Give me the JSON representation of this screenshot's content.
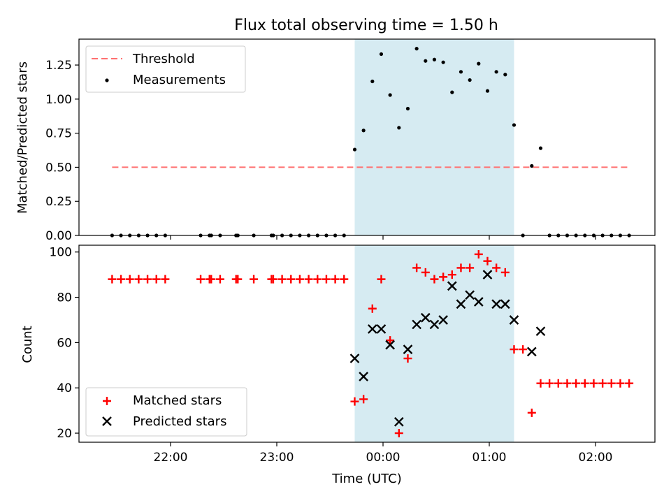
{
  "chart_data": {
    "title": "Flux total observing time = 1.50 h",
    "xlabel": "Time (UTC)",
    "x_ticks": [
      "22:00",
      "23:00",
      "00:00",
      "01:00",
      "02:00"
    ],
    "shade": {
      "start": "23:44",
      "end": "01:14",
      "color": "#add8e6"
    },
    "panels": [
      {
        "type": "scatter",
        "ylabel": "Matched/Predicted stars",
        "ylim": [
          0,
          1.44
        ],
        "yticks": [
          "0.00",
          "0.25",
          "0.50",
          "0.75",
          "1.00",
          "1.25"
        ],
        "legend_position": "top-left",
        "threshold": {
          "name": "Threshold",
          "value": 0.5,
          "x_start": "21:27",
          "x_end": "02:19",
          "color": "#ff7070"
        },
        "series": [
          {
            "name": "Measurements",
            "color": "#000000",
            "points": [
              [
                "21:27",
                0
              ],
              [
                "21:32",
                0
              ],
              [
                "21:37",
                0
              ],
              [
                "21:42",
                0
              ],
              [
                "21:47",
                0
              ],
              [
                "21:52",
                0
              ],
              [
                "21:57",
                0
              ],
              [
                "22:17",
                0
              ],
              [
                "22:22",
                0
              ],
              [
                "22:23",
                0
              ],
              [
                "22:28",
                0
              ],
              [
                "22:37",
                0
              ],
              [
                "22:38",
                0
              ],
              [
                "22:47",
                0
              ],
              [
                "22:57",
                0
              ],
              [
                "22:58",
                0
              ],
              [
                "23:03",
                0
              ],
              [
                "23:08",
                0
              ],
              [
                "23:13",
                0
              ],
              [
                "23:18",
                0
              ],
              [
                "23:23",
                0
              ],
              [
                "23:28",
                0
              ],
              [
                "23:33",
                0
              ],
              [
                "23:38",
                0
              ],
              [
                "23:44",
                0.63
              ],
              [
                "23:49",
                0.77
              ],
              [
                "23:54",
                1.13
              ],
              [
                "23:59",
                1.33
              ],
              [
                "00:04",
                1.03
              ],
              [
                "00:09",
                0.79
              ],
              [
                "00:14",
                0.93
              ],
              [
                "00:19",
                1.37
              ],
              [
                "00:24",
                1.28
              ],
              [
                "00:29",
                1.29
              ],
              [
                "00:34",
                1.27
              ],
              [
                "00:39",
                1.05
              ],
              [
                "00:44",
                1.2
              ],
              [
                "00:49",
                1.14
              ],
              [
                "00:54",
                1.26
              ],
              [
                "00:59",
                1.06
              ],
              [
                "01:04",
                1.2
              ],
              [
                "01:09",
                1.18
              ],
              [
                "01:14",
                0.81
              ],
              [
                "01:19",
                0.0
              ],
              [
                "01:24",
                0.51
              ],
              [
                "01:29",
                0.64
              ],
              [
                "01:34",
                0
              ],
              [
                "01:39",
                0
              ],
              [
                "01:44",
                0
              ],
              [
                "01:49",
                0
              ],
              [
                "01:54",
                0
              ],
              [
                "01:59",
                0
              ],
              [
                "02:04",
                0
              ],
              [
                "02:09",
                0
              ],
              [
                "02:14",
                0
              ],
              [
                "02:19",
                0
              ]
            ]
          }
        ]
      },
      {
        "type": "scatter",
        "ylabel": "Count",
        "ylim": [
          16,
          103
        ],
        "yticks": [
          "20",
          "40",
          "60",
          "80",
          "100"
        ],
        "legend_position": "bottom-left",
        "series": [
          {
            "name": "Matched stars",
            "marker": "plus",
            "color": "#ff0000",
            "points": [
              [
                "21:27",
                88
              ],
              [
                "21:32",
                88
              ],
              [
                "21:37",
                88
              ],
              [
                "21:42",
                88
              ],
              [
                "21:47",
                88
              ],
              [
                "21:52",
                88
              ],
              [
                "21:57",
                88
              ],
              [
                "22:17",
                88
              ],
              [
                "22:22",
                88
              ],
              [
                "22:23",
                88
              ],
              [
                "22:28",
                88
              ],
              [
                "22:37",
                88
              ],
              [
                "22:38",
                88
              ],
              [
                "22:47",
                88
              ],
              [
                "22:57",
                88
              ],
              [
                "22:58",
                88
              ],
              [
                "23:03",
                88
              ],
              [
                "23:08",
                88
              ],
              [
                "23:13",
                88
              ],
              [
                "23:18",
                88
              ],
              [
                "23:23",
                88
              ],
              [
                "23:28",
                88
              ],
              [
                "23:33",
                88
              ],
              [
                "23:38",
                88
              ],
              [
                "23:44",
                34
              ],
              [
                "23:49",
                35
              ],
              [
                "23:54",
                75
              ],
              [
                "23:59",
                88
              ],
              [
                "00:04",
                61
              ],
              [
                "00:09",
                20
              ],
              [
                "00:14",
                53
              ],
              [
                "00:19",
                93
              ],
              [
                "00:24",
                91
              ],
              [
                "00:29",
                88
              ],
              [
                "00:34",
                89
              ],
              [
                "00:39",
                90
              ],
              [
                "00:44",
                93
              ],
              [
                "00:49",
                93
              ],
              [
                "00:54",
                99
              ],
              [
                "00:59",
                96
              ],
              [
                "01:04",
                93
              ],
              [
                "01:09",
                91
              ],
              [
                "01:14",
                57
              ],
              [
                "01:19",
                57
              ],
              [
                "01:24",
                29
              ],
              [
                "01:29",
                42
              ],
              [
                "01:34",
                42
              ],
              [
                "01:39",
                42
              ],
              [
                "01:44",
                42
              ],
              [
                "01:49",
                42
              ],
              [
                "01:54",
                42
              ],
              [
                "01:59",
                42
              ],
              [
                "02:04",
                42
              ],
              [
                "02:09",
                42
              ],
              [
                "02:14",
                42
              ],
              [
                "02:19",
                42
              ]
            ]
          },
          {
            "name": "Predicted stars",
            "marker": "x",
            "color": "#000000",
            "points": [
              [
                "23:44",
                53
              ],
              [
                "23:49",
                45
              ],
              [
                "23:54",
                66
              ],
              [
                "23:59",
                66
              ],
              [
                "00:04",
                59
              ],
              [
                "00:09",
                25
              ],
              [
                "00:14",
                57
              ],
              [
                "00:19",
                68
              ],
              [
                "00:24",
                71
              ],
              [
                "00:29",
                68
              ],
              [
                "00:34",
                70
              ],
              [
                "00:39",
                85
              ],
              [
                "00:44",
                77
              ],
              [
                "00:49",
                81
              ],
              [
                "00:54",
                78
              ],
              [
                "00:59",
                90
              ],
              [
                "01:04",
                77
              ],
              [
                "01:09",
                77
              ],
              [
                "01:14",
                70
              ],
              [
                "01:24",
                56
              ],
              [
                "01:29",
                65
              ]
            ]
          }
        ]
      }
    ]
  }
}
